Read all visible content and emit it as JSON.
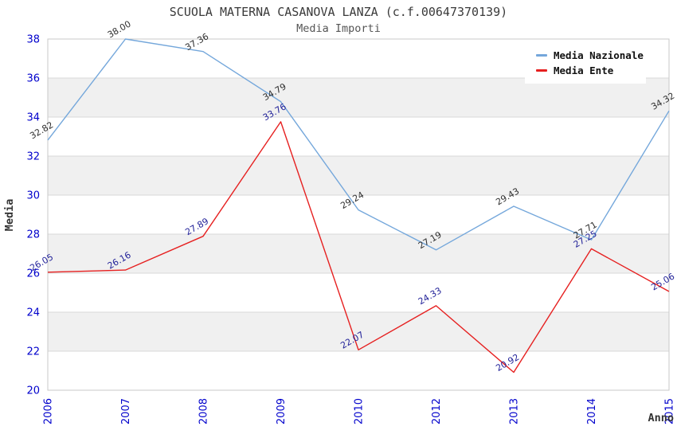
{
  "chart_data": {
    "type": "line",
    "title": "SCUOLA MATERNA CASANOVA LANZA (c.f.00647370139)",
    "subtitle": "Media Importi",
    "xlabel": "Anno",
    "ylabel": "Media",
    "ylim": [
      20,
      38
    ],
    "ytick_step": 2,
    "grid": "horizontal-with-alternating-bands",
    "legend_position": "top-right",
    "categories": [
      "2006",
      "2007",
      "2008",
      "2009",
      "2010",
      "2012",
      "2013",
      "2014",
      "2015"
    ],
    "series": [
      {
        "name": "Media Nazionale",
        "color": "#74a7db",
        "label_color": "#2e2e2e",
        "values": [
          32.82,
          38.0,
          37.36,
          34.79,
          29.24,
          27.19,
          29.43,
          27.71,
          34.32
        ],
        "labels": [
          "32.82",
          "38.00",
          "37.36",
          "34.79",
          "29.24",
          "27.19",
          "29.43",
          "27.71",
          "34.32"
        ]
      },
      {
        "name": "Media Ente",
        "color": "#e62020",
        "label_color": "#222299",
        "values": [
          26.05,
          26.16,
          27.89,
          33.76,
          22.07,
          24.33,
          20.92,
          27.25,
          25.06
        ],
        "labels": [
          "26.05",
          "26.16",
          "27.89",
          "33.76",
          "22.07",
          "24.33",
          "20.92",
          "27.25",
          "25.06"
        ]
      }
    ],
    "colors": {
      "tick_label": "#0000cc",
      "grid_line": "#d9d9d9",
      "plot_border": "#c9c9c9",
      "band_fill": "#f0f0f0",
      "axis_title": "#333333",
      "title": "#3a3a3a",
      "subtitle": "#555555"
    }
  }
}
